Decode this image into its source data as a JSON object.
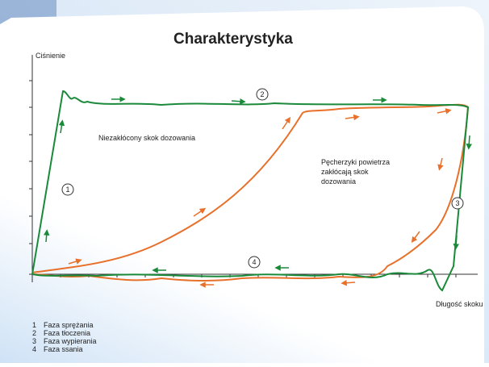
{
  "header": {
    "title": "Charakterystyka"
  },
  "axes": {
    "y_label": "Ciśnienie",
    "x_label": "Długość skoku"
  },
  "annotations": {
    "undisturbed": "Niezakłócony skok dozowania",
    "bubbles": [
      "Pęcherzyki powietrza",
      "zakłócają skok",
      "dozowania"
    ]
  },
  "markers": [
    "1",
    "2",
    "3",
    "4"
  ],
  "legend": [
    {
      "number": "1",
      "text": "Faza sprężania"
    },
    {
      "number": "2",
      "text": "Faza tłoczenia"
    },
    {
      "number": "3",
      "text": "Faza wypierania"
    },
    {
      "number": "4",
      "text": "Faza ssania"
    }
  ]
}
